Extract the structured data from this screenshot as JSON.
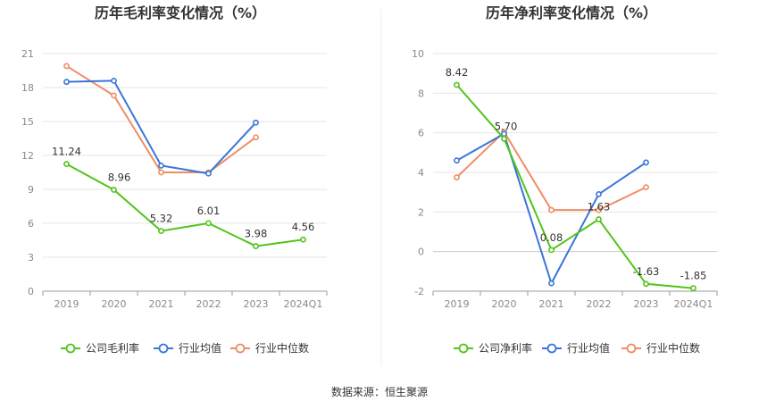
{
  "charts": {
    "chart_data": [
      {
        "type": "line",
        "title": "历年毛利率变化情况（%）",
        "categories": [
          "2019",
          "2020",
          "2021",
          "2022",
          "2023",
          "2024Q1"
        ],
        "ylim": [
          0,
          21
        ],
        "yticks": [
          0,
          3,
          6,
          9,
          12,
          15,
          18,
          21
        ],
        "grid": true,
        "legend_position": "bottom",
        "series": [
          {
            "name": "公司毛利率",
            "color": "#52c41a",
            "values": [
              11.24,
              8.96,
              5.32,
              6.01,
              3.98,
              4.56
            ],
            "labels": [
              "11.24",
              "8.96",
              "5.32",
              "6.01",
              "3.98",
              "4.56"
            ]
          },
          {
            "name": "行业均值",
            "color": "#3a76d8",
            "values": [
              18.5,
              18.6,
              11.1,
              10.4,
              14.9,
              null
            ]
          },
          {
            "name": "行业中位数",
            "color": "#f08c64",
            "values": [
              19.9,
              17.3,
              10.5,
              10.5,
              13.6,
              null
            ]
          }
        ]
      },
      {
        "type": "line",
        "title": "历年净利率变化情况（%）",
        "categories": [
          "2019",
          "2020",
          "2021",
          "2022",
          "2023",
          "2024Q1"
        ],
        "ylim": [
          -2,
          10
        ],
        "yticks": [
          -2,
          0,
          2,
          4,
          6,
          8,
          10
        ],
        "grid": true,
        "legend_position": "bottom",
        "series": [
          {
            "name": "公司净利率",
            "color": "#52c41a",
            "values": [
              8.42,
              5.7,
              0.08,
              1.63,
              -1.63,
              -1.85
            ],
            "labels": [
              "8.42",
              "5.70",
              "0.08",
              "1.63",
              "-1.63",
              "-1.85"
            ]
          },
          {
            "name": "行业均值",
            "color": "#3a76d8",
            "values": [
              4.6,
              5.95,
              -1.6,
              2.9,
              4.5,
              null
            ]
          },
          {
            "name": "行业中位数",
            "color": "#f08c64",
            "values": [
              3.75,
              6.05,
              2.1,
              2.1,
              3.25,
              null
            ]
          }
        ]
      }
    ]
  },
  "footer": {
    "source": "数据来源：恒生聚源"
  }
}
